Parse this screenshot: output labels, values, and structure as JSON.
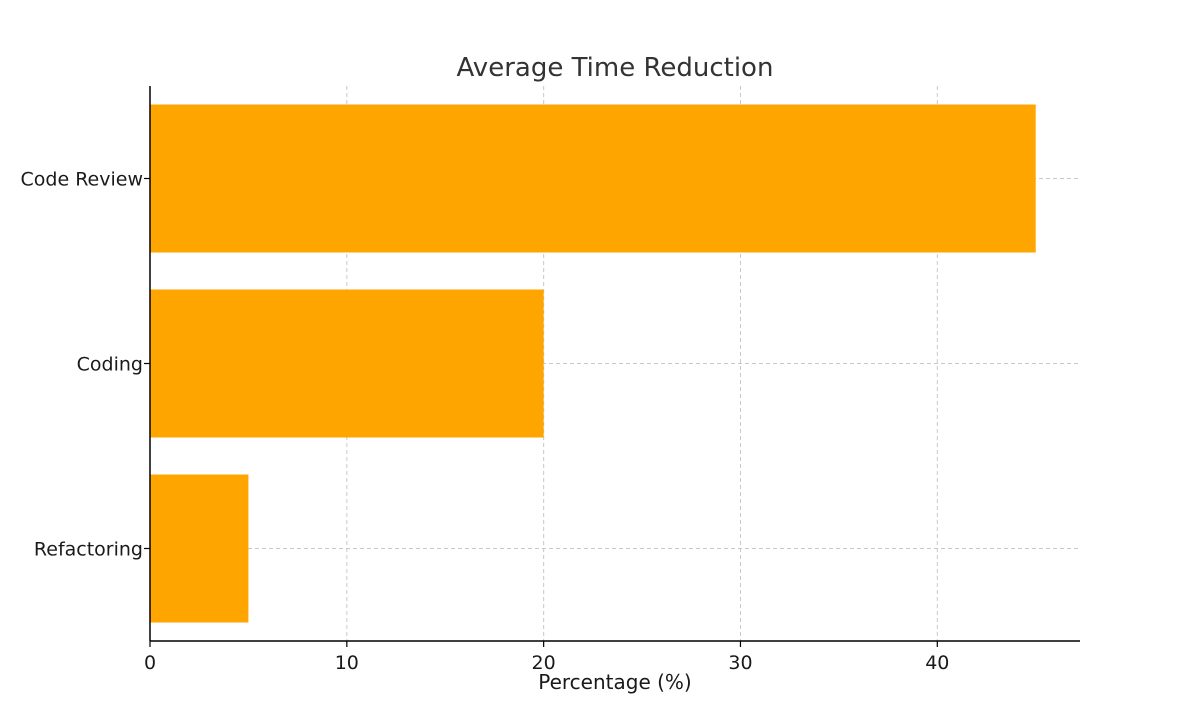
{
  "chart_data": {
    "type": "bar",
    "orientation": "horizontal",
    "title": "Average Time Reduction",
    "xlabel": "Percentage (%)",
    "ylabel": "",
    "categories": [
      "Code Review",
      "Coding",
      "Refactoring"
    ],
    "values": [
      45,
      20,
      5
    ],
    "xlim": [
      0,
      47.25
    ],
    "xticks": [
      0,
      10,
      20,
      30,
      40
    ],
    "grid": true,
    "legend": "none",
    "bar_color": "#FFA500"
  }
}
